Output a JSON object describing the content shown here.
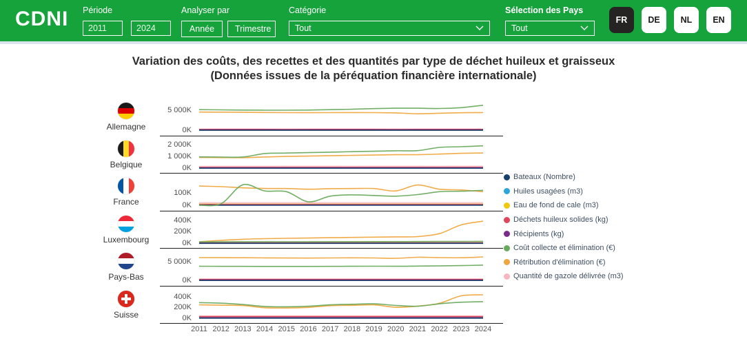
{
  "header": {
    "logo": "CDNI",
    "colors": {
      "header_bg": "#16a33c",
      "active_lang_bg": "#252423",
      "header_text": "#ffffff"
    },
    "periode": {
      "label": "Période",
      "from": "2011",
      "to": "2024"
    },
    "analyser": {
      "label": "Analyser par",
      "options": [
        "Année",
        "Trimestre"
      ]
    },
    "categorie": {
      "label": "Catégorie",
      "value": "Tout"
    },
    "pays": {
      "label": "Sélection des Pays",
      "value": "Tout"
    },
    "languages": [
      {
        "code": "FR",
        "active": true
      },
      {
        "code": "DE",
        "active": false
      },
      {
        "code": "NL",
        "active": false
      },
      {
        "code": "EN",
        "active": false
      }
    ]
  },
  "title": {
    "line1": "Variation des coûts, des recettes et des quantités par type de déchet huileux et graisseux",
    "line2": "(Données issues de la péréquation financière internationale)"
  },
  "chart_data": {
    "type": "line",
    "values_unit": "thousands (K)",
    "x": [
      2011,
      2012,
      2013,
      2014,
      2015,
      2016,
      2017,
      2018,
      2019,
      2020,
      2021,
      2022,
      2023,
      2024
    ],
    "legend_position": "right",
    "series_defs": [
      {
        "key": "bateaux",
        "label": "Bateaux (Nombre)",
        "color": "#17406d"
      },
      {
        "key": "huiles",
        "label": "Huiles usagées (m3)",
        "color": "#2aa6dd"
      },
      {
        "key": "eau",
        "label": "Eau de fond de cale (m3)",
        "color": "#f2c80f"
      },
      {
        "key": "dechets",
        "label": "Déchets huileux solides (kg)",
        "color": "#e0465a"
      },
      {
        "key": "recipients",
        "label": "Récipients (kg)",
        "color": "#7b2b8b"
      },
      {
        "key": "cout",
        "label": "Coût collecte et élimination (€)",
        "color": "#6aaa5e"
      },
      {
        "key": "retribution",
        "label": "Rétribution d'élimination (€)",
        "color": "#f0a73e"
      },
      {
        "key": "gazole",
        "label": "Quantité de gazole délivrée (m3)",
        "color": "#f5b8c0"
      }
    ],
    "countries": [
      {
        "name": "Allemagne",
        "flag": {
          "type": "h",
          "colors": [
            "#1a1a1a",
            "#dd0000",
            "#ffce00"
          ]
        },
        "ymax": 6600,
        "ticks": [
          {
            "v": 5000,
            "label": "5 000K"
          },
          {
            "v": 0,
            "label": "0K"
          }
        ],
        "series": {
          "cout": [
            5200,
            5150,
            5100,
            5060,
            5050,
            5100,
            5200,
            5300,
            5450,
            5550,
            5550,
            5480,
            5700,
            6300
          ],
          "retribution": [
            4600,
            4570,
            4530,
            4490,
            4460,
            4440,
            4460,
            4470,
            4460,
            4380,
            4160,
            4300,
            4430,
            4480
          ],
          "dechets": [
            280,
            285,
            290,
            285,
            280,
            285,
            290,
            290,
            285,
            280,
            285,
            290,
            295,
            300
          ],
          "gazole": [
            240,
            238,
            236,
            240,
            242,
            240,
            238,
            240,
            242,
            238,
            236,
            240,
            242,
            244
          ],
          "recipients": [
            160,
            160,
            158,
            160,
            162,
            160,
            158,
            160,
            162,
            160,
            158,
            160,
            162,
            164
          ],
          "eau": [
            120,
            120,
            120,
            120,
            120,
            120,
            120,
            120,
            120,
            120,
            120,
            120,
            120,
            120
          ],
          "huiles": [
            90,
            90,
            90,
            90,
            90,
            90,
            90,
            90,
            90,
            90,
            90,
            90,
            90,
            90
          ],
          "bateaux": [
            60,
            60,
            60,
            60,
            60,
            60,
            60,
            60,
            60,
            60,
            60,
            60,
            60,
            60
          ]
        }
      },
      {
        "name": "Belgique",
        "flag": {
          "type": "v",
          "colors": [
            "#1a1a1a",
            "#fdda24",
            "#ef3340"
          ]
        },
        "ymax": 2300,
        "ticks": [
          {
            "v": 2000,
            "label": "2 000K"
          },
          {
            "v": 1000,
            "label": "1 000K"
          },
          {
            "v": 0,
            "label": "0K"
          }
        ],
        "series": {
          "cout": [
            1000,
            985,
            990,
            1290,
            1330,
            1370,
            1410,
            1450,
            1490,
            1530,
            1540,
            1820,
            1880,
            1960
          ],
          "retribution": [
            950,
            940,
            930,
            990,
            1040,
            1070,
            1100,
            1130,
            1160,
            1190,
            1190,
            1240,
            1310,
            1340
          ],
          "gazole": [
            140,
            142,
            144,
            146,
            148,
            150,
            148,
            146,
            148,
            150,
            148,
            146,
            148,
            150
          ],
          "dechets": [
            90,
            90,
            92,
            90,
            88,
            90,
            92,
            90,
            88,
            90,
            92,
            90,
            88,
            90
          ],
          "recipients": [
            45,
            45,
            45,
            45,
            45,
            45,
            45,
            45,
            45,
            45,
            45,
            45,
            45,
            45
          ],
          "eau": [
            60,
            60,
            60,
            60,
            60,
            60,
            60,
            60,
            60,
            60,
            60,
            60,
            60,
            60
          ],
          "huiles": [
            35,
            35,
            35,
            35,
            35,
            35,
            35,
            35,
            35,
            35,
            35,
            35,
            35,
            35
          ],
          "bateaux": [
            15,
            15,
            15,
            15,
            15,
            15,
            15,
            15,
            15,
            15,
            15,
            15,
            15,
            15
          ]
        }
      },
      {
        "name": "France",
        "flag": {
          "type": "v",
          "colors": [
            "#0055a4",
            "#ffffff",
            "#ef4135"
          ]
        },
        "ymax": 210,
        "ticks": [
          {
            "v": 100,
            "label": "100K"
          },
          {
            "v": 0,
            "label": "0K"
          }
        ],
        "series": {
          "retribution": [
            155,
            150,
            141,
            136,
            135,
            130,
            134,
            135,
            135,
            116,
            163,
            130,
            124,
            110
          ],
          "cout": [
            3,
            15,
            165,
            116,
            110,
            30,
            75,
            85,
            80,
            75,
            87,
            110,
            114,
            121
          ],
          "gazole": [
            19,
            19,
            19,
            19,
            19,
            19,
            19,
            19,
            19,
            19,
            19,
            19,
            19,
            19
          ],
          "dechets": [
            8,
            8,
            8,
            8,
            8,
            8,
            8,
            8,
            8,
            8,
            8,
            8,
            8,
            8
          ],
          "recipients": [
            5,
            5,
            5,
            5,
            5,
            5,
            5,
            5,
            5,
            5,
            5,
            5,
            5,
            5
          ],
          "eau": [
            11,
            11,
            11,
            11,
            11,
            11,
            11,
            11,
            11,
            11,
            11,
            11,
            11,
            11
          ],
          "huiles": [
            7,
            7,
            7,
            7,
            7,
            7,
            7,
            7,
            7,
            7,
            7,
            7,
            7,
            7
          ],
          "bateaux": [
            3,
            3,
            3,
            3,
            3,
            3,
            3,
            3,
            3,
            3,
            3,
            3,
            3,
            3
          ]
        }
      },
      {
        "name": "Luxembourg",
        "flag": {
          "type": "h",
          "colors": [
            "#ed2939",
            "#ffffff",
            "#00a1de"
          ]
        },
        "ymax": 470,
        "ticks": [
          {
            "v": 400,
            "label": "400K"
          },
          {
            "v": 200,
            "label": "200K"
          },
          {
            "v": 0,
            "label": "0K"
          }
        ],
        "series": {
          "retribution": [
            30,
            55,
            75,
            85,
            92,
            97,
            102,
            107,
            112,
            117,
            122,
            175,
            330,
            395
          ],
          "cout": [
            28,
            29,
            30,
            30,
            31,
            31,
            32,
            32,
            33,
            33,
            34,
            35,
            36,
            38
          ],
          "gazole": [
            22,
            22,
            22,
            22,
            22,
            22,
            22,
            22,
            22,
            22,
            22,
            22,
            22,
            22
          ],
          "dechets": [
            10,
            10,
            10,
            10,
            10,
            10,
            10,
            10,
            10,
            10,
            10,
            10,
            10,
            10
          ],
          "recipients": [
            6,
            6,
            6,
            6,
            6,
            6,
            6,
            6,
            6,
            6,
            6,
            6,
            6,
            6
          ],
          "eau": [
            12,
            12,
            12,
            12,
            12,
            12,
            12,
            12,
            12,
            12,
            12,
            12,
            12,
            12
          ],
          "huiles": [
            8,
            8,
            8,
            8,
            8,
            8,
            8,
            8,
            8,
            8,
            8,
            8,
            8,
            8
          ],
          "bateaux": [
            3,
            3,
            3,
            3,
            3,
            3,
            3,
            3,
            3,
            3,
            3,
            3,
            3,
            3
          ]
        }
      },
      {
        "name": "Pays-Bas",
        "flag": {
          "type": "h",
          "colors": [
            "#ae1c28",
            "#ffffff",
            "#21468b"
          ]
        },
        "ymax": 7000,
        "ticks": [
          {
            "v": 5000,
            "label": "5 000K"
          },
          {
            "v": 0,
            "label": "0K"
          }
        ],
        "series": {
          "retribution": [
            6100,
            6080,
            6050,
            6010,
            5990,
            5960,
            6000,
            6040,
            6000,
            5900,
            6180,
            6090,
            6050,
            6280
          ],
          "cout": [
            3800,
            3790,
            3780,
            3770,
            3760,
            3760,
            3780,
            3800,
            3820,
            3800,
            3850,
            3900,
            3980,
            4100
          ],
          "dechets": [
            350,
            352,
            350,
            348,
            350,
            352,
            350,
            348,
            350,
            352,
            350,
            348,
            350,
            352
          ],
          "gazole": [
            260,
            260,
            260,
            260,
            260,
            260,
            260,
            260,
            260,
            260,
            260,
            260,
            260,
            260
          ],
          "recipients": [
            185,
            185,
            185,
            185,
            185,
            185,
            185,
            185,
            185,
            185,
            185,
            185,
            185,
            185
          ],
          "eau": [
            140,
            140,
            140,
            140,
            140,
            140,
            140,
            140,
            140,
            140,
            140,
            140,
            140,
            140
          ],
          "huiles": [
            100,
            100,
            100,
            100,
            100,
            100,
            100,
            100,
            100,
            100,
            100,
            100,
            100,
            100
          ],
          "bateaux": [
            60,
            60,
            60,
            60,
            60,
            60,
            60,
            60,
            60,
            60,
            60,
            60,
            60,
            60
          ]
        }
      },
      {
        "name": "Suisse",
        "flag": {
          "type": "cross",
          "colors": [
            "#da291c",
            "#ffffff"
          ]
        },
        "ymax": 500,
        "ticks": [
          {
            "v": 400,
            "label": "400K"
          },
          {
            "v": 200,
            "label": "200K"
          },
          {
            "v": 0,
            "label": "0K"
          }
        ],
        "series": {
          "cout": [
            300,
            290,
            265,
            228,
            222,
            232,
            258,
            270,
            278,
            248,
            232,
            278,
            308,
            318
          ],
          "retribution": [
            258,
            252,
            246,
            204,
            199,
            211,
            243,
            250,
            258,
            213,
            234,
            288,
            428,
            448
          ],
          "dechets": [
            42,
            42,
            42,
            42,
            42,
            42,
            42,
            42,
            42,
            42,
            42,
            42,
            42,
            42
          ],
          "gazole": [
            28,
            28,
            28,
            28,
            28,
            28,
            28,
            28,
            28,
            28,
            28,
            28,
            28,
            28
          ],
          "recipients": [
            18,
            18,
            18,
            18,
            18,
            18,
            18,
            18,
            18,
            18,
            18,
            18,
            18,
            18
          ],
          "eau": [
            20,
            20,
            20,
            20,
            20,
            20,
            20,
            20,
            20,
            20,
            20,
            20,
            20,
            20
          ],
          "huiles": [
            14,
            14,
            14,
            14,
            14,
            14,
            14,
            14,
            14,
            14,
            14,
            14,
            14,
            14
          ],
          "bateaux": [
            8,
            8,
            8,
            8,
            8,
            8,
            8,
            8,
            8,
            8,
            8,
            8,
            8,
            8
          ]
        }
      }
    ]
  }
}
